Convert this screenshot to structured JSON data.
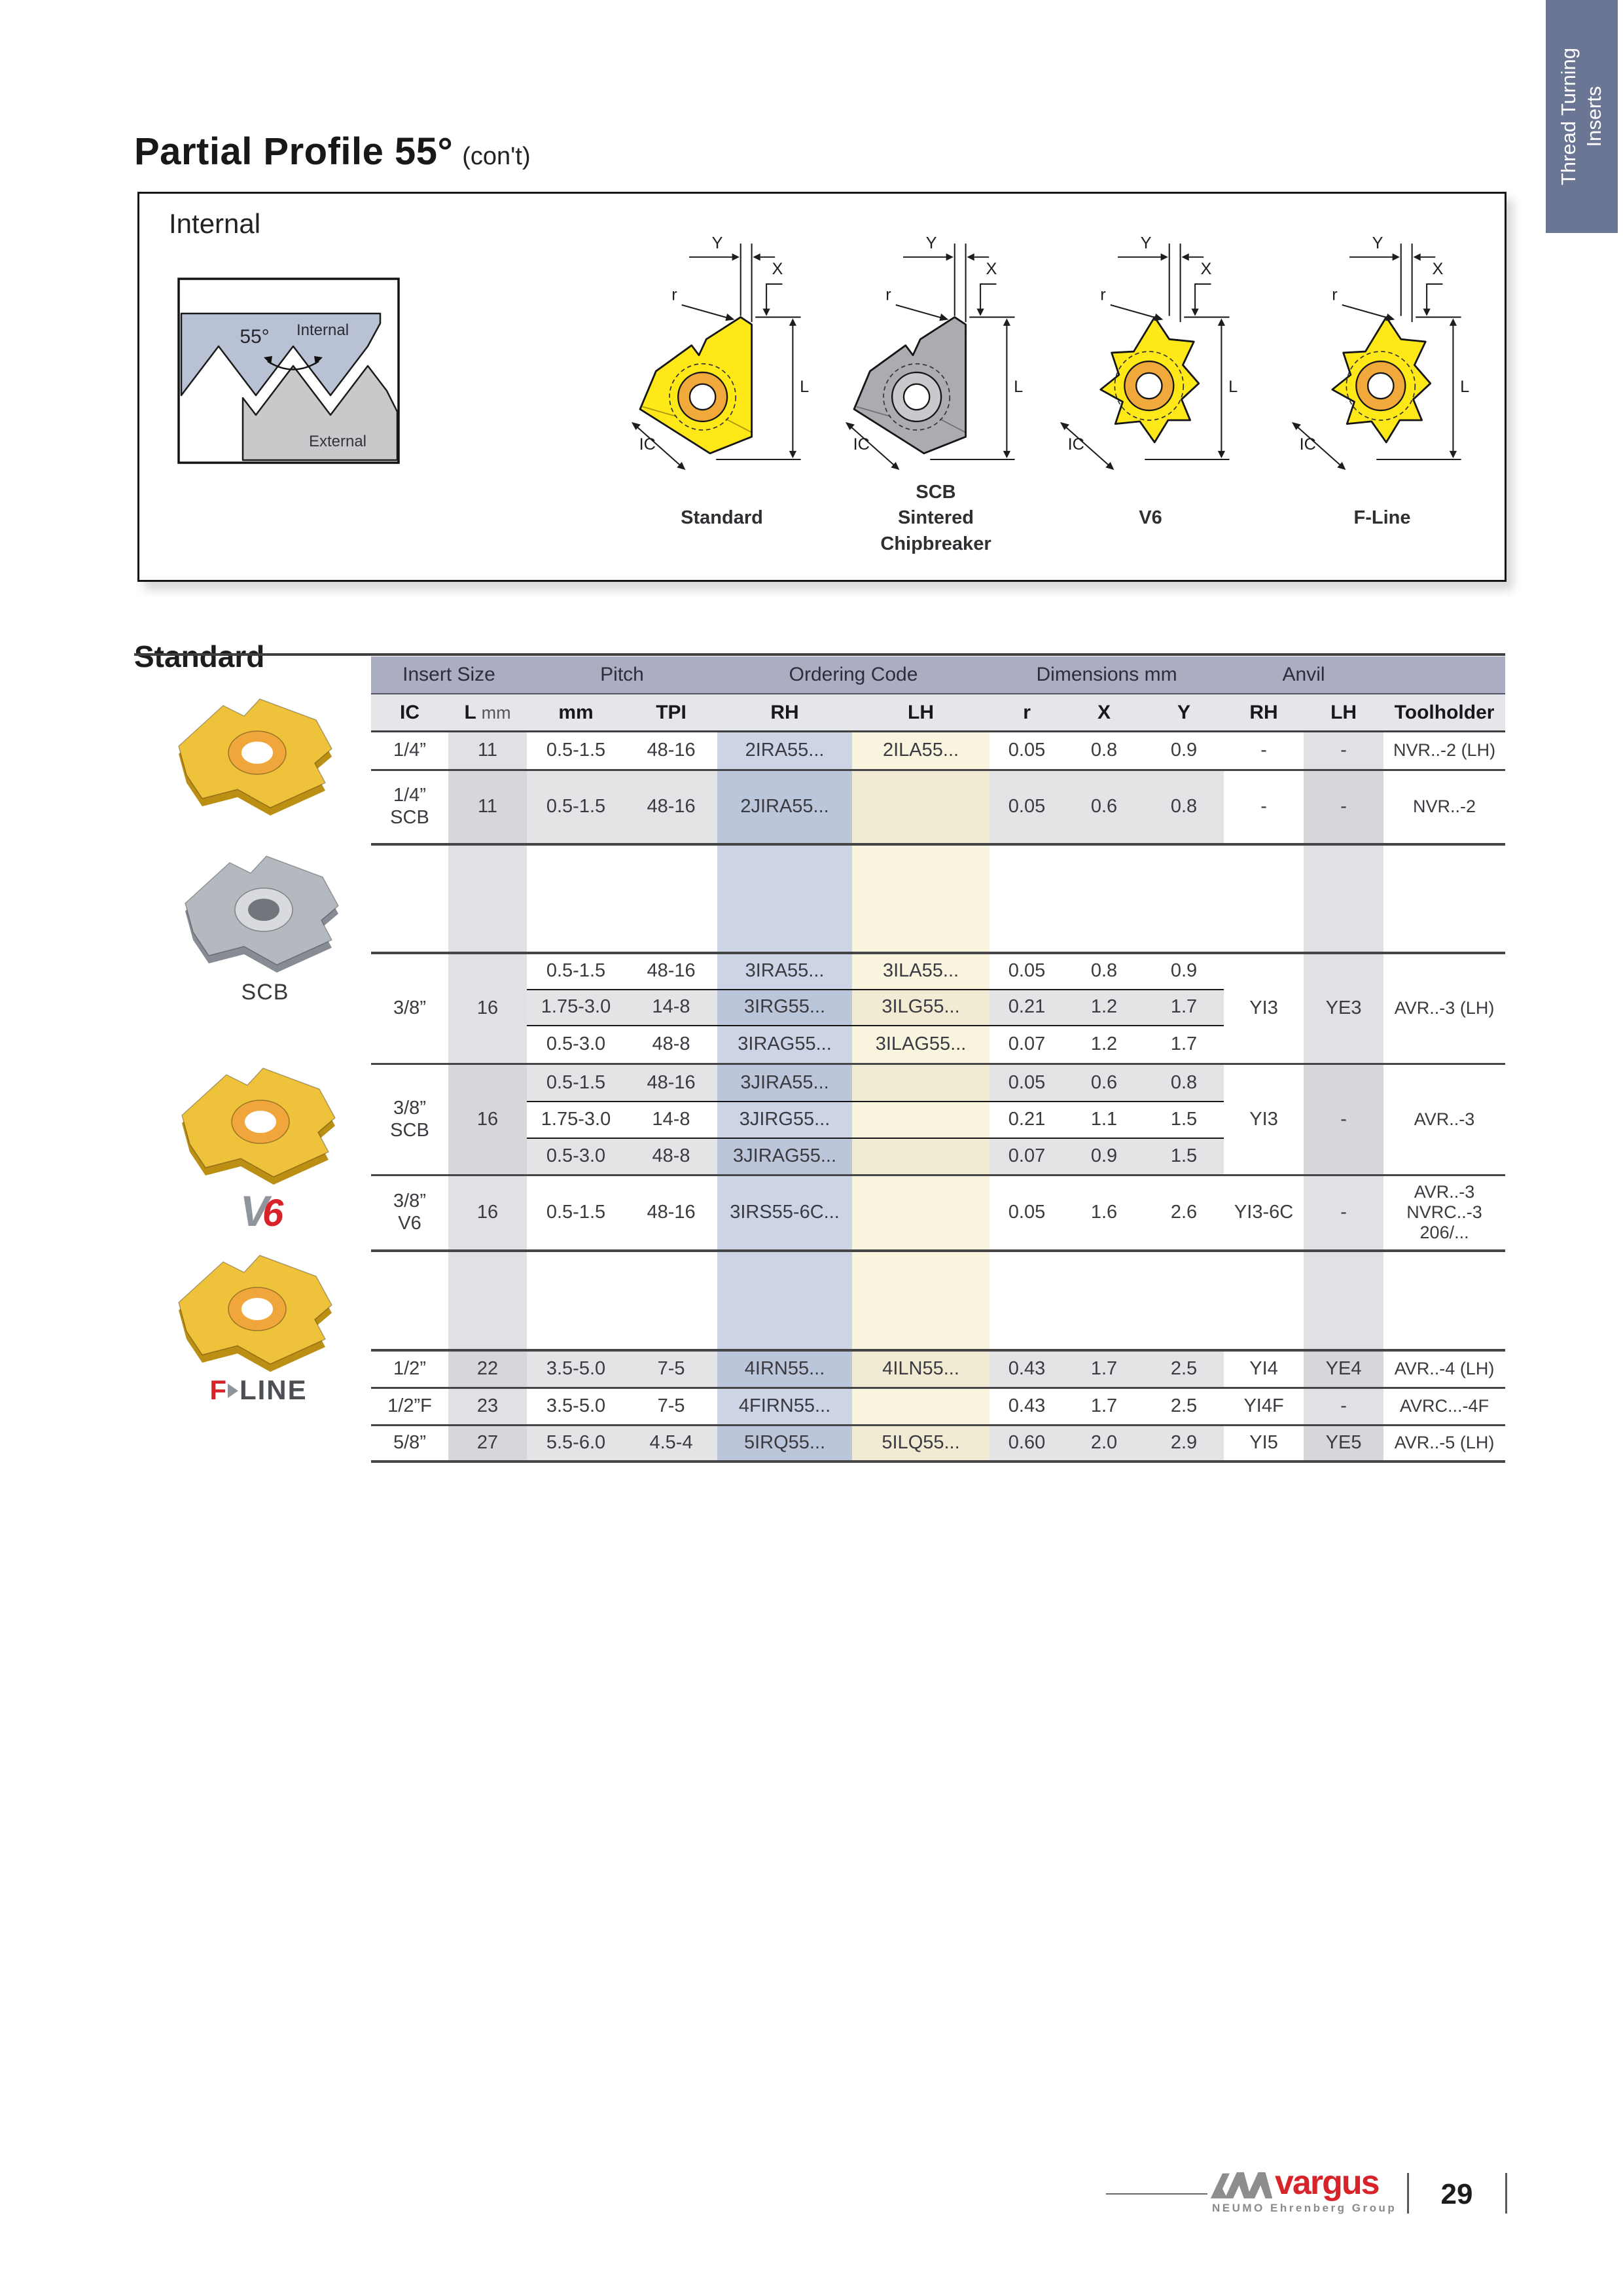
{
  "tab": {
    "line1": "Thread Turning",
    "line2": "Inserts"
  },
  "title": {
    "main": "Partial Profile 55°",
    "suffix": "(con't)"
  },
  "panel": {
    "title": "Internal",
    "thread_diagram": {
      "internal": "Internal",
      "external": "External",
      "angle": "55°"
    },
    "dims": {
      "y": "Y",
      "x": "X",
      "r": "r",
      "l": "L",
      "ic": "IC"
    },
    "variants": [
      {
        "caption": "Standard",
        "style": "gold",
        "shape": "triangle"
      },
      {
        "caption": "SCB\nSintered\nChipbreaker",
        "style": "gray",
        "shape": "triangle"
      },
      {
        "caption": "V6",
        "style": "gold",
        "shape": "trefoil"
      },
      {
        "caption": "F-Line",
        "style": "gold",
        "shape": "trefoil"
      }
    ]
  },
  "section_heading": "Standard",
  "products": [
    {
      "label": "",
      "style": "gold"
    },
    {
      "label": "SCB",
      "style": "gray"
    },
    {
      "label": "",
      "style": "gold",
      "logo": "v6"
    },
    {
      "label": "",
      "style": "gold",
      "logo": "fline"
    }
  ],
  "logos": {
    "v6": {
      "v": "V",
      "six": "6"
    },
    "fline": {
      "f": "F",
      "line": "LINE"
    }
  },
  "table": {
    "groups": [
      {
        "label": "Insert Size",
        "span": 2
      },
      {
        "label": "Pitch",
        "span": 2
      },
      {
        "label": "Ordering Code",
        "span": 2
      },
      {
        "label": "Dimensions mm",
        "span": 3
      },
      {
        "label": "Anvil",
        "span": 2
      },
      {
        "label": "",
        "span": 1
      }
    ],
    "columns": [
      "IC",
      {
        "main": "L",
        "unit": "mm"
      },
      "mm",
      "TPI",
      "RH",
      "LH",
      "r",
      "X",
      "Y",
      "RH",
      "LH",
      "Toolholder"
    ],
    "blocks": [
      {
        "kind": "data",
        "ic": "1/4”",
        "l": "11",
        "anvil_rh": "-",
        "anvil_lh": "-",
        "tool": "NVR..-2 (LH)",
        "rows": [
          {
            "mm": "0.5-1.5",
            "tpi": "48-16",
            "rh": "2IRA55...",
            "lh": "2ILA55...",
            "r": "0.05",
            "x": "0.8",
            "y": "0.9",
            "stripe": false,
            "h": 59
          }
        ]
      },
      {
        "kind": "data",
        "ic": "1/4”\nSCB",
        "l": "11",
        "anvil_rh": "-",
        "anvil_lh": "-",
        "tool": "NVR..-2",
        "rows": [
          {
            "mm": "0.5-1.5",
            "tpi": "48-16",
            "rh": "2JIRA55...",
            "lh": "",
            "r": "0.05",
            "x": "0.6",
            "y": "0.8",
            "stripe": true,
            "h": 113
          }
        ]
      },
      {
        "kind": "gap",
        "h": 166
      },
      {
        "kind": "data",
        "ic": "3/8”",
        "l": "16",
        "anvil_rh": "YI3",
        "anvil_lh": "YE3",
        "tool": "AVR..-3 (LH)",
        "rows": [
          {
            "mm": "0.5-1.5",
            "tpi": "48-16",
            "rh": "3IRA55...",
            "lh": "3ILA55...",
            "r": "0.05",
            "x": "0.8",
            "y": "0.9",
            "stripe": false,
            "h": 56
          },
          {
            "mm": "1.75-3.0",
            "tpi": "14-8",
            "rh": "3IRG55...",
            "lh": "3ILG55...",
            "r": "0.21",
            "x": "1.2",
            "y": "1.7",
            "stripe": true,
            "h": 55
          },
          {
            "mm": "0.5-3.0",
            "tpi": "48-8",
            "rh": "3IRAG55...",
            "lh": "3ILAG55...",
            "r": "0.07",
            "x": "1.2",
            "y": "1.7",
            "stripe": false,
            "h": 59
          }
        ]
      },
      {
        "kind": "data",
        "ic": "3/8”\nSCB",
        "l": "16",
        "anvil_rh": "YI3",
        "anvil_lh": "-",
        "tool": "AVR..-3",
        "rows": [
          {
            "mm": "0.5-1.5",
            "tpi": "48-16",
            "rh": "3JIRA55...",
            "lh": "",
            "r": "0.05",
            "x": "0.6",
            "y": "0.8",
            "stripe": true,
            "h": 57
          },
          {
            "mm": "1.75-3.0",
            "tpi": "14-8",
            "rh": "3JIRG55...",
            "lh": "",
            "r": "0.21",
            "x": "1.1",
            "y": "1.5",
            "stripe": false,
            "h": 56
          },
          {
            "mm": "0.5-3.0",
            "tpi": "48-8",
            "rh": "3JIRAG55...",
            "lh": "",
            "r": "0.07",
            "x": "0.9",
            "y": "1.5",
            "stripe": true,
            "h": 57
          }
        ]
      },
      {
        "kind": "data",
        "ic": "3/8”\nV6",
        "l": "16",
        "anvil_rh": "YI3-6C",
        "anvil_lh": "-",
        "tool": "AVR..-3\nNVRC..-3 206/...",
        "rows": [
          {
            "mm": "0.5-1.5",
            "tpi": "48-16",
            "rh": "3IRS55-6C...",
            "lh": "",
            "r": "0.05",
            "x": "1.6",
            "y": "2.6",
            "stripe": false,
            "h": 115
          }
        ]
      },
      {
        "kind": "gap",
        "h": 152
      },
      {
        "kind": "data",
        "ic": "1/2”",
        "l": "22",
        "anvil_rh": "YI4",
        "anvil_lh": "YE4",
        "tool": "AVR..-4 (LH)",
        "rows": [
          {
            "mm": "3.5-5.0",
            "tpi": "7-5",
            "rh": "4IRN55...",
            "lh": "4ILN55...",
            "r": "0.43",
            "x": "1.7",
            "y": "2.5",
            "stripe": true,
            "h": 58
          }
        ]
      },
      {
        "kind": "data",
        "ic": "1/2”F",
        "l": "23",
        "anvil_rh": "YI4F",
        "anvil_lh": "-",
        "tool": "AVRC...-4F",
        "rows": [
          {
            "mm": "3.5-5.0",
            "tpi": "7-5",
            "rh": "4FIRN55...",
            "lh": "",
            "r": "0.43",
            "x": "1.7",
            "y": "2.5",
            "stripe": false,
            "h": 57
          }
        ]
      },
      {
        "kind": "data",
        "ic": "5/8”",
        "l": "27",
        "anvil_rh": "YI5",
        "anvil_lh": "YE5",
        "tool": "AVR..-5 (LH)",
        "rows": [
          {
            "mm": "5.5-6.0",
            "tpi": "4.5-4",
            "rh": "5IRQ55...",
            "lh": "5ILQ55...",
            "r": "0.60",
            "x": "2.0",
            "y": "2.9",
            "stripe": true,
            "h": 55
          }
        ]
      }
    ]
  },
  "footer": {
    "brand": "vargus",
    "brand_sub": "NEUMO Ehrenberg Group",
    "page_number": "29"
  },
  "colors": {
    "tab_bg": "#6b7695",
    "group_band": "#abaec3",
    "column_header": "#e5e6e9",
    "rh_column": "#ccd4e6",
    "lh_column": "#f8f4dd",
    "gray_column": "#e0e1e4",
    "stripe": "#e4e4e7",
    "brand_red": "#d8232a",
    "insert_gold": "#eec23b",
    "schematic_yellow": "#ffe817",
    "internal_fill": "#b9c1d4",
    "external_fill": "#c9c9cb"
  }
}
